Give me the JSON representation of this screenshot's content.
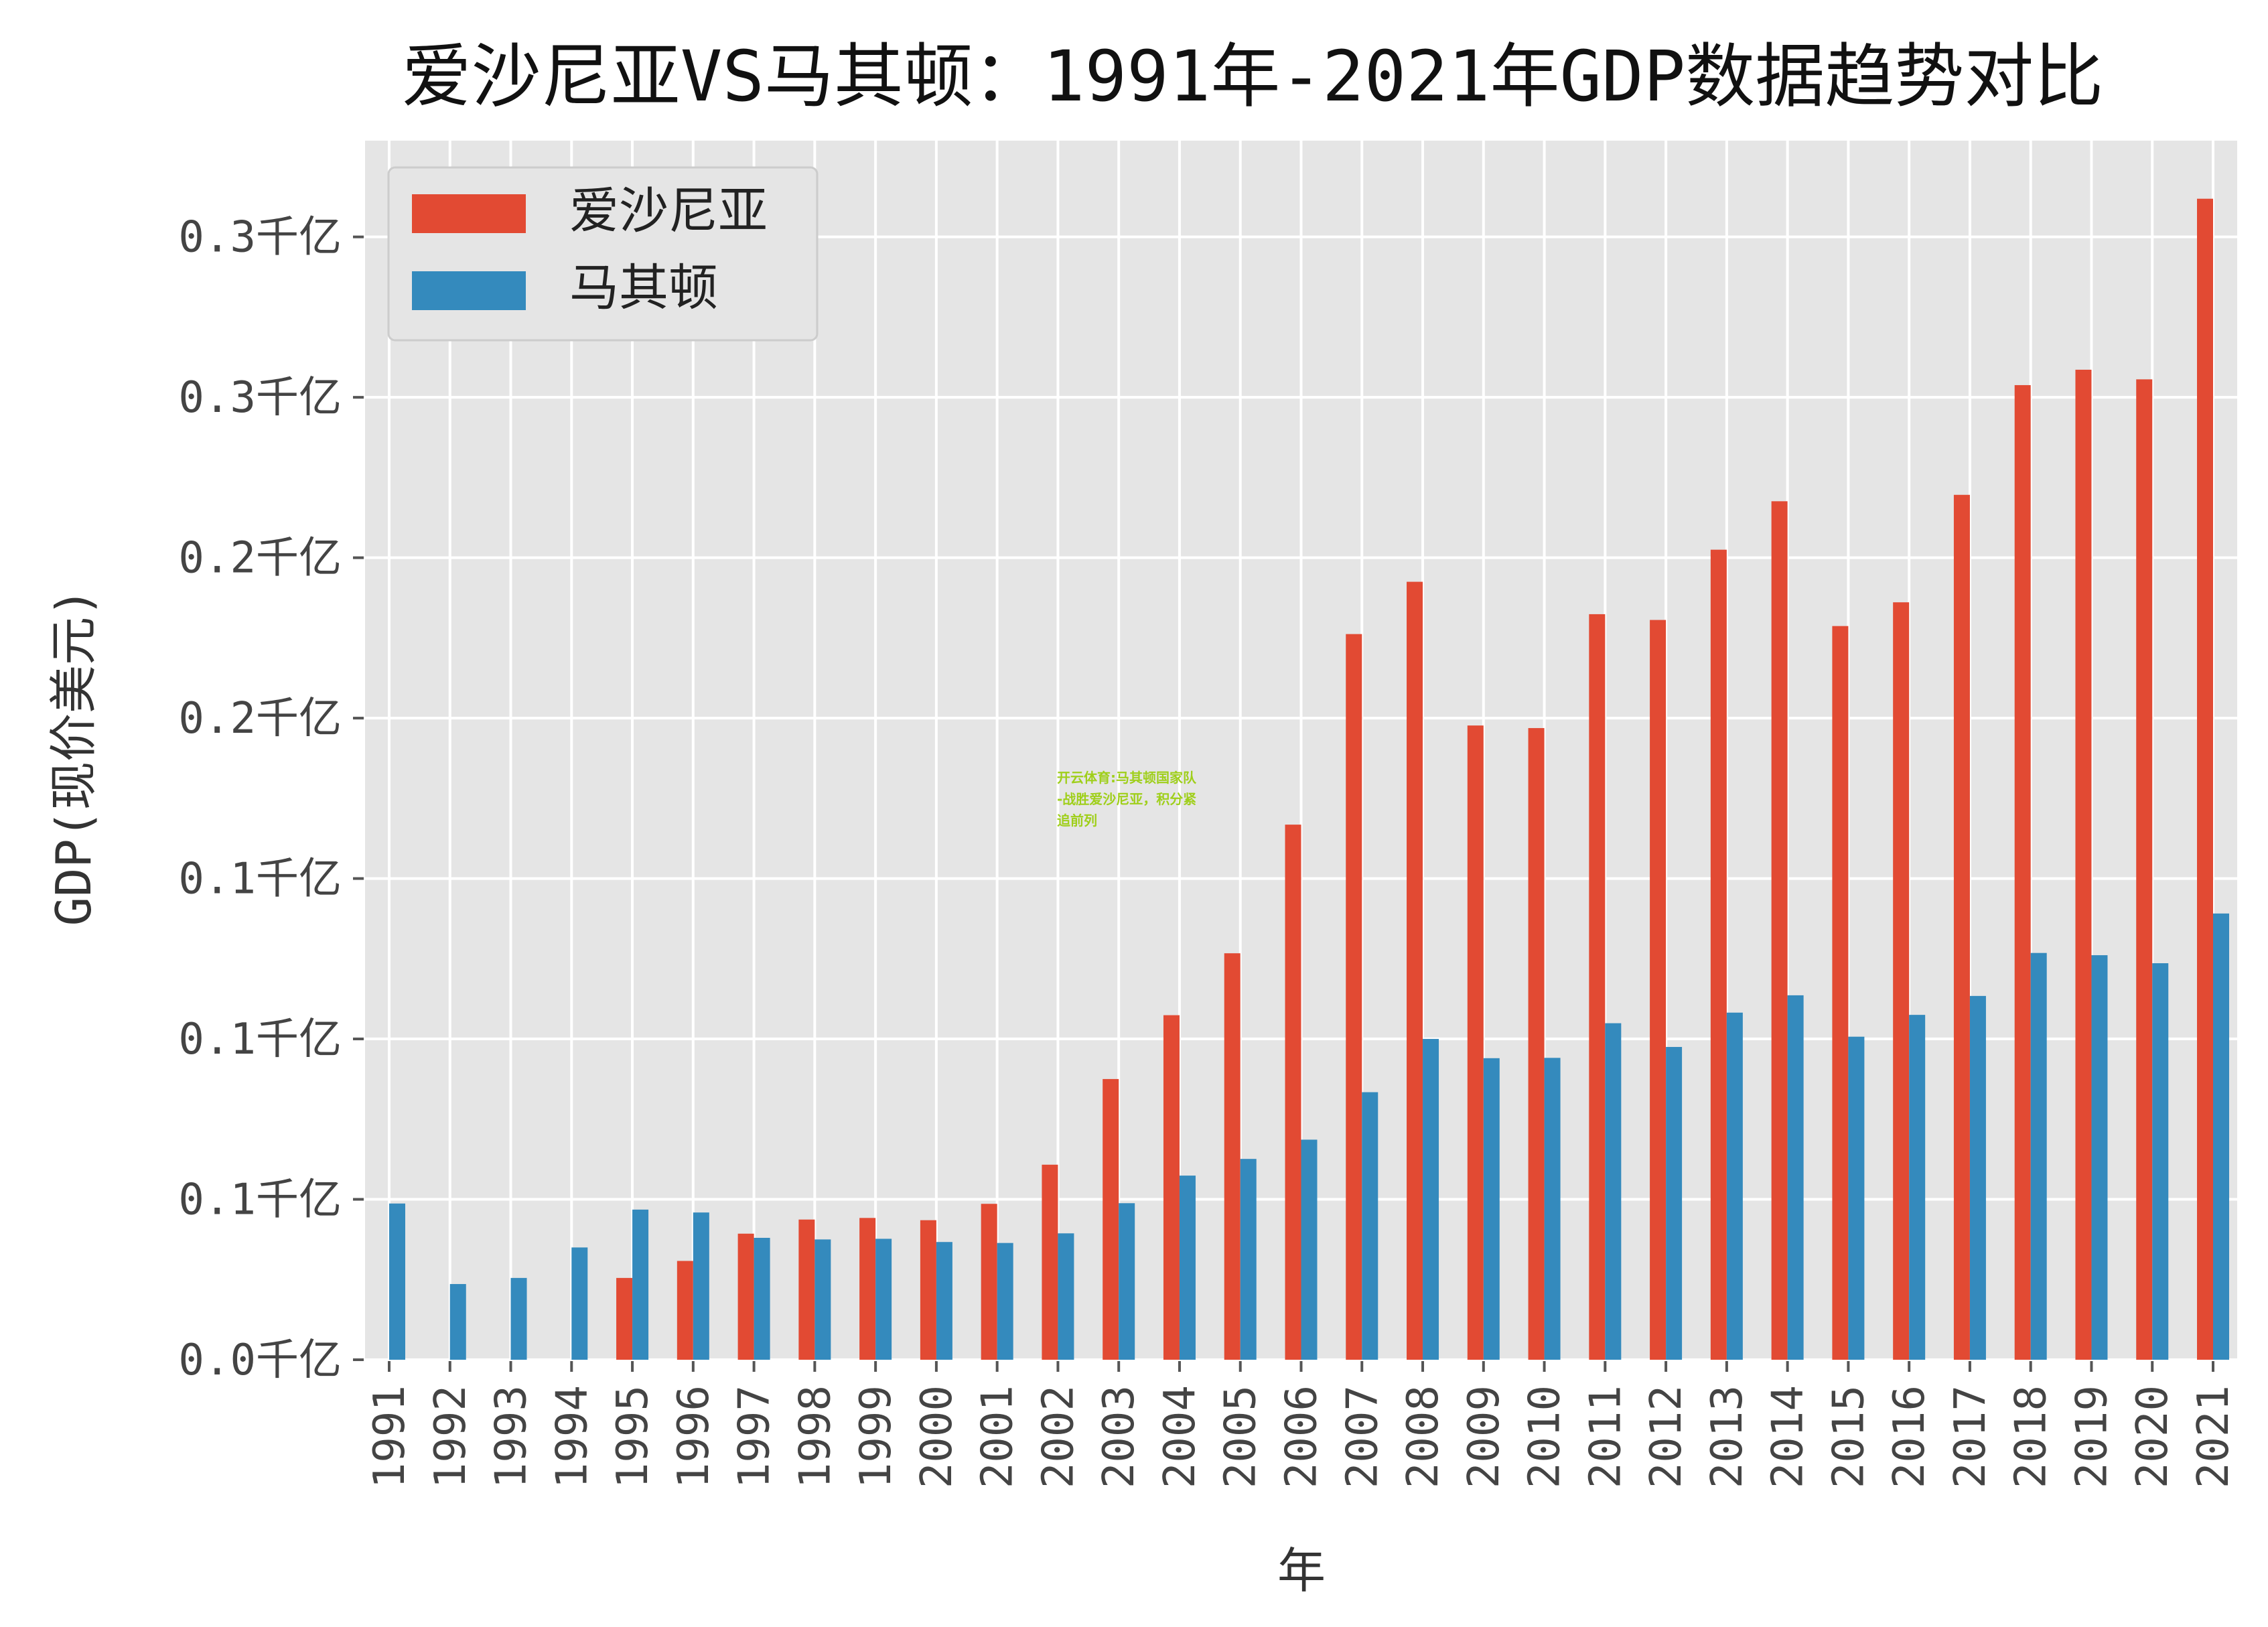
{
  "chart_data": {
    "type": "bar",
    "title": "爱沙尼亚VS马其顿：1991年-2021年GDP数据趋势对比",
    "xlabel": "年",
    "ylabel": "GDP(现价美元)",
    "categories": [
      "1991",
      "1992",
      "1993",
      "1994",
      "1995",
      "1996",
      "1997",
      "1998",
      "1999",
      "2000",
      "2001",
      "2002",
      "2003",
      "2004",
      "2005",
      "2006",
      "2007",
      "2008",
      "2009",
      "2010",
      "2011",
      "2012",
      "2013",
      "2014",
      "2015",
      "2016",
      "2017",
      "2018",
      "2019",
      "2020",
      "2021"
    ],
    "series": [
      {
        "name": "爱沙尼亚",
        "color": "#E24A33",
        "values": [
          null,
          null,
          null,
          null,
          2.55,
          3.08,
          3.93,
          4.37,
          4.42,
          4.35,
          4.86,
          6.08,
          8.75,
          10.74,
          12.67,
          16.68,
          22.62,
          24.25,
          19.77,
          19.69,
          23.24,
          23.06,
          25.25,
          26.76,
          22.87,
          23.61,
          26.96,
          30.38,
          30.86,
          30.56,
          36.19
        ]
      },
      {
        "name": "马其顿",
        "color": "#348ABD",
        "values": [
          4.87,
          2.36,
          2.55,
          3.5,
          4.68,
          4.59,
          3.8,
          3.75,
          3.77,
          3.67,
          3.64,
          3.94,
          4.88,
          5.74,
          6.26,
          6.86,
          8.34,
          10.0,
          9.4,
          9.41,
          10.49,
          9.75,
          10.82,
          11.36,
          10.07,
          10.75,
          11.34,
          12.68,
          12.61,
          12.36,
          13.91
        ]
      }
    ],
    "ylim": [
      0,
      38
    ],
    "yticks": [
      {
        "value": 0,
        "label": "0.0千亿"
      },
      {
        "value": 5,
        "label": "0.1千亿"
      },
      {
        "value": 10,
        "label": "0.1千亿"
      },
      {
        "value": 15,
        "label": "0.1千亿"
      },
      {
        "value": 20,
        "label": "0.2千亿"
      },
      {
        "value": 25,
        "label": "0.2千亿"
      },
      {
        "value": 30,
        "label": "0.3千亿"
      },
      {
        "value": 35,
        "label": "0.3千亿"
      }
    ],
    "grid": true,
    "legend_position": "top-left",
    "annotation": "开云体育:马其顿国家队-战胜爱沙尼亚，积分紧追前列"
  }
}
